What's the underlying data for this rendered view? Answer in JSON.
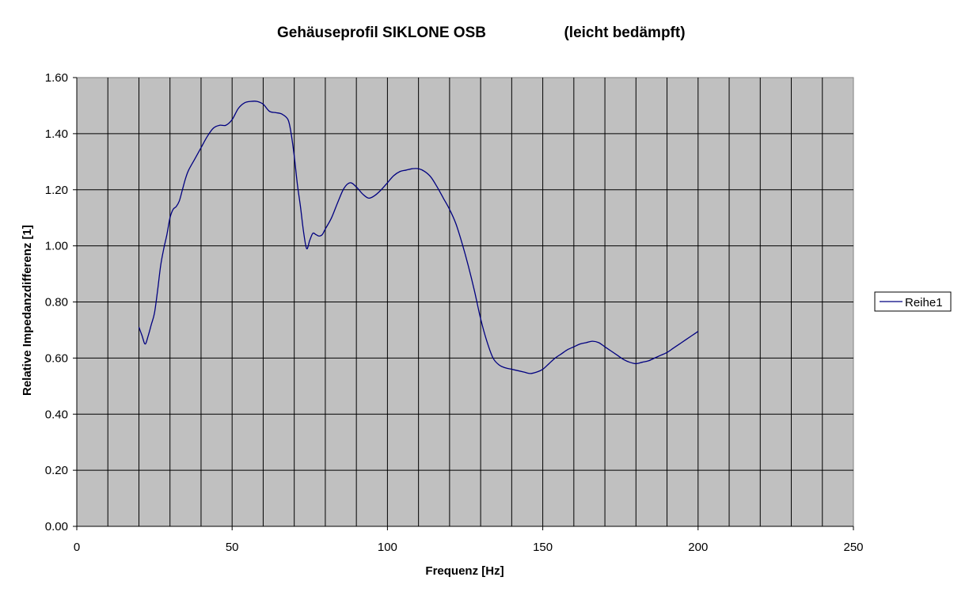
{
  "chart_data": {
    "type": "line",
    "title": "Gehäuseprofil SIKLONE OSB",
    "subtitle": "(leicht bedämpft)",
    "xlabel": "Frequenz [Hz]",
    "ylabel": "Relative Impedanzdifferenz [1]",
    "xlim": [
      0,
      250
    ],
    "ylim": [
      0,
      1.6
    ],
    "x_ticks": [
      "0",
      "50",
      "100",
      "150",
      "200",
      "250"
    ],
    "y_ticks": [
      "0.00",
      "0.20",
      "0.40",
      "0.60",
      "0.80",
      "1.00",
      "1.20",
      "1.40",
      "1.60"
    ],
    "grid": true,
    "legend_position": "right",
    "plot_background": "#c0c0c0",
    "line_color": "#000080",
    "series": [
      {
        "name": "Reihe1",
        "x": [
          20,
          21,
          22,
          23,
          24,
          25,
          26,
          27,
          28,
          29,
          30,
          31,
          32,
          33,
          34,
          35,
          36,
          38,
          40,
          42,
          44,
          46,
          48,
          50,
          52,
          54,
          56,
          58,
          60,
          62,
          64,
          66,
          68,
          69,
          70,
          71,
          72,
          73,
          74,
          75,
          76,
          77,
          78,
          79,
          80,
          82,
          84,
          86,
          88,
          90,
          92,
          94,
          96,
          98,
          100,
          102,
          104,
          106,
          108,
          110,
          112,
          114,
          116,
          118,
          120,
          122,
          124,
          126,
          128,
          130,
          132,
          134,
          136,
          138,
          140,
          142,
          144,
          146,
          148,
          150,
          152,
          154,
          156,
          158,
          160,
          162,
          164,
          166,
          168,
          170,
          172,
          174,
          176,
          178,
          180,
          182,
          184,
          186,
          188,
          190,
          192,
          194,
          196,
          198,
          200
        ],
        "y": [
          0.71,
          0.68,
          0.65,
          0.68,
          0.72,
          0.76,
          0.84,
          0.93,
          0.99,
          1.04,
          1.1,
          1.13,
          1.14,
          1.16,
          1.2,
          1.24,
          1.27,
          1.31,
          1.35,
          1.39,
          1.42,
          1.43,
          1.43,
          1.45,
          1.49,
          1.51,
          1.515,
          1.515,
          1.505,
          1.48,
          1.475,
          1.47,
          1.45,
          1.4,
          1.32,
          1.22,
          1.14,
          1.05,
          0.99,
          1.02,
          1.045,
          1.04,
          1.035,
          1.04,
          1.06,
          1.1,
          1.155,
          1.205,
          1.225,
          1.21,
          1.185,
          1.17,
          1.18,
          1.2,
          1.225,
          1.25,
          1.265,
          1.27,
          1.275,
          1.275,
          1.265,
          1.245,
          1.21,
          1.17,
          1.13,
          1.08,
          1.01,
          0.93,
          0.84,
          0.74,
          0.66,
          0.6,
          0.575,
          0.565,
          0.56,
          0.555,
          0.55,
          0.545,
          0.55,
          0.56,
          0.58,
          0.6,
          0.615,
          0.63,
          0.64,
          0.65,
          0.655,
          0.66,
          0.655,
          0.64,
          0.625,
          0.61,
          0.595,
          0.585,
          0.58,
          0.585,
          0.59,
          0.6,
          0.61,
          0.62,
          0.635,
          0.65,
          0.665,
          0.68,
          0.695
        ]
      }
    ]
  }
}
